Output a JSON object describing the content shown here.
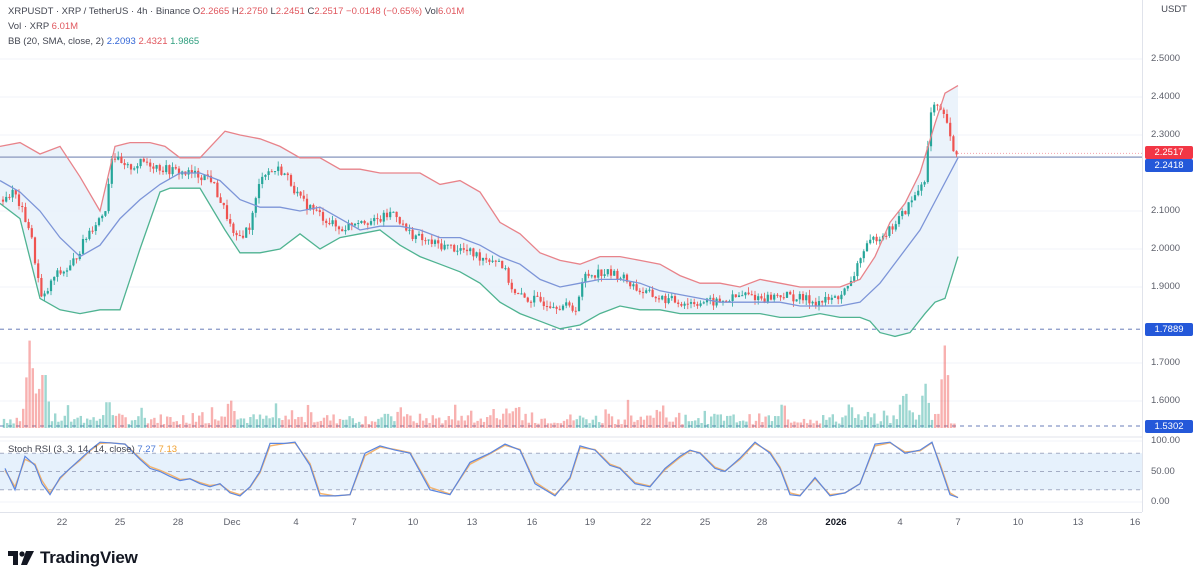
{
  "header": {
    "symbol": "XRPUSDT · XRP / TetherUS · 4h · Binance",
    "ohlc": [
      {
        "label": "O",
        "value": "2.2665"
      },
      {
        "label": "H",
        "value": "2.2750"
      },
      {
        "label": "L",
        "value": "2.2451"
      },
      {
        "label": "C",
        "value": "2.2517"
      }
    ],
    "change": "−0.0148 (−0.65%)",
    "vol_label": "Vol",
    "vol_value": "6.01M"
  },
  "volume_legend": {
    "label": "Vol · XRP",
    "value": "6.01M"
  },
  "bb_legend": {
    "label": "BB (20, SMA, close, 2)",
    "basis": "2.2093",
    "upper": "2.4321",
    "lower": "1.9865"
  },
  "stoch_legend": {
    "label": "Stoch RSI (3, 3, 14, 14, close)",
    "k": "7.27",
    "d": "7.13"
  },
  "price_axis": {
    "title": "USDT",
    "ticks": [
      {
        "label": "2.5000",
        "value": 2.5
      },
      {
        "label": "2.4000",
        "value": 2.4
      },
      {
        "label": "2.3000",
        "value": 2.3
      },
      {
        "label": "2.1000",
        "value": 2.1
      },
      {
        "label": "2.0000",
        "value": 2.0
      },
      {
        "label": "1.9000",
        "value": 1.9
      },
      {
        "label": "1.7000",
        "value": 1.7
      },
      {
        "label": "1.6000",
        "value": 1.6
      }
    ],
    "tags": [
      {
        "label": "2.2517",
        "value": 2.2517,
        "color": "#f23645"
      },
      {
        "label": "2.2418",
        "value": 2.2418,
        "color": "#2458d9"
      },
      {
        "label": "1.7889",
        "value": 1.7889,
        "color": "#2458d9"
      },
      {
        "label": "1.5302",
        "value": 1.5302,
        "color": "#2458d9"
      }
    ]
  },
  "stoch_axis": {
    "ticks": [
      {
        "label": "100.00",
        "value": 100
      },
      {
        "label": "50.00",
        "value": 50
      },
      {
        "label": "0.00",
        "value": 0
      }
    ]
  },
  "time_axis": {
    "ticks": [
      {
        "label": "22",
        "x": 62
      },
      {
        "label": "25",
        "x": 120
      },
      {
        "label": "28",
        "x": 178
      },
      {
        "label": "Dec",
        "x": 232
      },
      {
        "label": "4",
        "x": 296
      },
      {
        "label": "7",
        "x": 354
      },
      {
        "label": "10",
        "x": 413
      },
      {
        "label": "13",
        "x": 472
      },
      {
        "label": "16",
        "x": 532
      },
      {
        "label": "19",
        "x": 590
      },
      {
        "label": "22",
        "x": 646
      },
      {
        "label": "25",
        "x": 705
      },
      {
        "label": "28",
        "x": 762
      },
      {
        "label": "2026",
        "x": 836,
        "bold": true
      },
      {
        "label": "4",
        "x": 900
      },
      {
        "label": "7",
        "x": 958
      },
      {
        "label": "10",
        "x": 1018
      },
      {
        "label": "13",
        "x": 1078
      },
      {
        "label": "16",
        "x": 1135
      }
    ]
  },
  "branding": {
    "name": "TradingView"
  },
  "colors": {
    "up": "#26a69a",
    "down": "#ef5350",
    "bb_upper": "#e8838a",
    "bb_basis": "#7d95d8",
    "bb_lower": "#4fb391",
    "bb_fill": "#e9f2fb",
    "hline": "#9aa6c8",
    "dashed": "#8797c7",
    "stoch_k": "#5b86e0",
    "stoch_d": "#f2b36e",
    "stoch_band": "#e6f1fc"
  },
  "chart_data": {
    "type": "candlestick",
    "title": "XRPUSDT · XRP / TetherUS · 4h · Binance",
    "xlabel": "",
    "ylabel": "USDT",
    "ylim": [
      1.5,
      2.55
    ],
    "x_ticks": [
      "22",
      "25",
      "28",
      "Dec",
      "4",
      "7",
      "10",
      "13",
      "16",
      "19",
      "22",
      "25",
      "28",
      "2026",
      "4",
      "7",
      "10",
      "13",
      "16"
    ],
    "last": {
      "open": 2.2665,
      "high": 2.275,
      "low": 2.2451,
      "close": 2.2517,
      "change": -0.0148,
      "change_pct": -0.65,
      "volume": "6.01M"
    },
    "horizontal_lines": [
      {
        "value": 2.2418,
        "style": "solid"
      },
      {
        "value": 1.7889,
        "style": "dashed"
      },
      {
        "value": 1.5302,
        "style": "dashed"
      }
    ],
    "price_path": {
      "x": [
        0,
        14,
        30,
        42,
        55,
        70,
        90,
        105,
        112,
        125,
        145,
        165,
        185,
        210,
        228,
        235,
        250,
        262,
        280,
        290,
        300,
        320,
        340,
        360,
        375,
        395,
        405,
        425,
        440,
        460,
        480,
        500,
        515,
        525,
        545,
        565,
        575,
        585,
        600,
        620,
        640,
        660,
        680,
        700,
        720,
        745,
        765,
        780,
        800,
        820,
        835,
        850,
        860,
        875,
        890,
        905,
        915,
        925,
        932,
        940,
        948,
        952,
        958
      ],
      "close": [
        2.13,
        2.15,
        2.05,
        1.86,
        1.93,
        1.95,
        2.05,
        2.1,
        2.25,
        2.21,
        2.23,
        2.21,
        2.2,
        2.19,
        2.08,
        2.02,
        2.06,
        2.2,
        2.21,
        2.18,
        2.13,
        2.09,
        2.05,
        2.08,
        2.07,
        2.1,
        2.05,
        2.02,
        2.01,
        2.0,
        1.98,
        1.97,
        1.88,
        1.87,
        1.86,
        1.85,
        1.84,
        1.93,
        1.94,
        1.93,
        1.89,
        1.87,
        1.86,
        1.86,
        1.86,
        1.88,
        1.87,
        1.88,
        1.87,
        1.86,
        1.87,
        1.9,
        1.98,
        2.03,
        2.05,
        2.1,
        2.14,
        2.19,
        2.38,
        2.36,
        2.33,
        2.25,
        2.2517
      ]
    },
    "bollinger": {
      "upper_x": [
        0,
        20,
        40,
        60,
        80,
        100,
        115,
        130,
        150,
        165,
        180,
        200,
        225,
        240,
        260,
        280,
        300,
        320,
        340,
        360,
        380,
        400,
        420,
        440,
        460,
        480,
        500,
        520,
        540,
        560,
        580,
        600,
        620,
        640,
        660,
        680,
        700,
        720,
        740,
        760,
        780,
        800,
        820,
        840,
        860,
        875,
        890,
        905,
        920,
        935,
        945,
        958
      ],
      "upper": [
        2.27,
        2.28,
        2.25,
        2.27,
        2.19,
        2.1,
        2.27,
        2.28,
        2.28,
        2.27,
        2.24,
        2.24,
        2.31,
        2.3,
        2.29,
        2.27,
        2.24,
        2.24,
        2.21,
        2.21,
        2.2,
        2.2,
        2.2,
        2.17,
        2.18,
        2.15,
        2.07,
        2.04,
        1.99,
        1.97,
        1.96,
        1.98,
        1.98,
        1.97,
        1.96,
        1.93,
        1.91,
        1.91,
        1.9,
        1.92,
        1.91,
        1.9,
        1.9,
        1.9,
        1.92,
        1.98,
        2.07,
        2.12,
        2.2,
        2.33,
        2.41,
        2.43
      ],
      "basis_x": [
        0,
        20,
        40,
        60,
        80,
        100,
        120,
        140,
        160,
        180,
        200,
        220,
        240,
        260,
        280,
        300,
        320,
        340,
        360,
        380,
        400,
        420,
        440,
        460,
        480,
        500,
        520,
        540,
        560,
        580,
        600,
        620,
        640,
        660,
        680,
        700,
        720,
        740,
        760,
        780,
        800,
        820,
        840,
        860,
        880,
        900,
        920,
        940,
        958
      ],
      "basis": [
        2.18,
        2.15,
        2.1,
        2.03,
        1.98,
        2.01,
        2.08,
        2.13,
        2.17,
        2.2,
        2.2,
        2.18,
        2.13,
        2.11,
        2.11,
        2.1,
        2.11,
        2.08,
        2.05,
        2.06,
        2.06,
        2.05,
        2.03,
        2.03,
        2.01,
        1.98,
        1.96,
        1.92,
        1.9,
        1.91,
        1.92,
        1.92,
        1.91,
        1.89,
        1.88,
        1.87,
        1.86,
        1.86,
        1.86,
        1.86,
        1.85,
        1.85,
        1.85,
        1.86,
        1.91,
        1.98,
        2.05,
        2.15,
        2.24
      ],
      "lower_x": [
        0,
        20,
        40,
        60,
        80,
        100,
        120,
        140,
        160,
        170,
        185,
        200,
        225,
        240,
        260,
        280,
        300,
        320,
        340,
        360,
        380,
        400,
        420,
        440,
        460,
        480,
        500,
        520,
        540,
        560,
        580,
        600,
        620,
        640,
        660,
        680,
        700,
        720,
        740,
        760,
        780,
        800,
        820,
        840,
        860,
        870,
        880,
        895,
        910,
        925,
        935,
        945,
        958
      ],
      "lower": [
        2.12,
        2.08,
        1.87,
        1.84,
        1.83,
        1.84,
        1.84,
        2.0,
        2.15,
        2.16,
        2.16,
        2.16,
        2.05,
        1.99,
        1.99,
        2.0,
        2.04,
        2.0,
        2.03,
        2.04,
        2.05,
        2.01,
        1.98,
        1.96,
        1.94,
        1.91,
        1.86,
        1.83,
        1.81,
        1.79,
        1.8,
        1.83,
        1.85,
        1.84,
        1.84,
        1.83,
        1.83,
        1.83,
        1.83,
        1.83,
        1.82,
        1.82,
        1.83,
        1.82,
        1.82,
        1.81,
        1.78,
        1.77,
        1.78,
        1.83,
        1.86,
        1.87,
        1.98
      ]
    },
    "volume": {
      "note": "relative volume bar heights 0-1, highest spikes around Nov 21 and Jan 5-6",
      "spikes": [
        {
          "x": 30,
          "h": 1.0,
          "dir": "down"
        },
        {
          "x": 44,
          "h": 0.72,
          "dir": "up"
        },
        {
          "x": 38,
          "h": 0.5,
          "dir": "down"
        },
        {
          "x": 108,
          "h": 0.35,
          "dir": "up"
        },
        {
          "x": 230,
          "h": 0.35,
          "dir": "down"
        },
        {
          "x": 400,
          "h": 0.25,
          "dir": "up"
        },
        {
          "x": 515,
          "h": 0.25,
          "dir": "down"
        },
        {
          "x": 850,
          "h": 0.3,
          "dir": "up"
        },
        {
          "x": 905,
          "h": 0.45,
          "dir": "up"
        },
        {
          "x": 925,
          "h": 0.52,
          "dir": "up"
        },
        {
          "x": 945,
          "h": 0.92,
          "dir": "down"
        }
      ]
    },
    "stoch_rsi": {
      "x": [
        5,
        15,
        25,
        35,
        42,
        50,
        60,
        70,
        80,
        90,
        100,
        110,
        125,
        140,
        150,
        160,
        170,
        180,
        190,
        200,
        210,
        220,
        230,
        240,
        250,
        260,
        270,
        285,
        295,
        310,
        320,
        335,
        350,
        365,
        380,
        395,
        410,
        430,
        450,
        470,
        490,
        505,
        520,
        535,
        545,
        555,
        570,
        580,
        595,
        610,
        620,
        635,
        650,
        665,
        680,
        690,
        700,
        715,
        725,
        740,
        755,
        770,
        780,
        790,
        800,
        815,
        830,
        845,
        860,
        875,
        890,
        905,
        920,
        932,
        940,
        950,
        958
      ],
      "k": [
        55,
        20,
        75,
        60,
        30,
        12,
        40,
        55,
        70,
        85,
        98,
        97,
        95,
        70,
        55,
        50,
        42,
        35,
        38,
        30,
        25,
        30,
        15,
        10,
        25,
        50,
        96,
        96,
        98,
        60,
        10,
        10,
        12,
        80,
        92,
        85,
        80,
        20,
        12,
        65,
        80,
        95,
        85,
        30,
        20,
        10,
        40,
        92,
        85,
        60,
        55,
        30,
        25,
        55,
        75,
        85,
        80,
        55,
        50,
        72,
        98,
        80,
        55,
        12,
        10,
        40,
        10,
        15,
        30,
        95,
        98,
        80,
        85,
        98,
        60,
        12,
        7.27
      ],
      "d": [
        52,
        25,
        70,
        62,
        35,
        15,
        38,
        55,
        68,
        84,
        96,
        97,
        95,
        72,
        58,
        52,
        45,
        37,
        38,
        32,
        27,
        29,
        17,
        12,
        24,
        48,
        92,
        96,
        97,
        63,
        14,
        10,
        12,
        76,
        90,
        86,
        81,
        24,
        13,
        62,
        79,
        93,
        86,
        33,
        22,
        12,
        38,
        89,
        86,
        62,
        56,
        32,
        26,
        53,
        73,
        84,
        81,
        57,
        51,
        70,
        96,
        82,
        57,
        15,
        11,
        38,
        12,
        15,
        30,
        92,
        97,
        82,
        84,
        97,
        63,
        15,
        7.13
      ]
    }
  }
}
